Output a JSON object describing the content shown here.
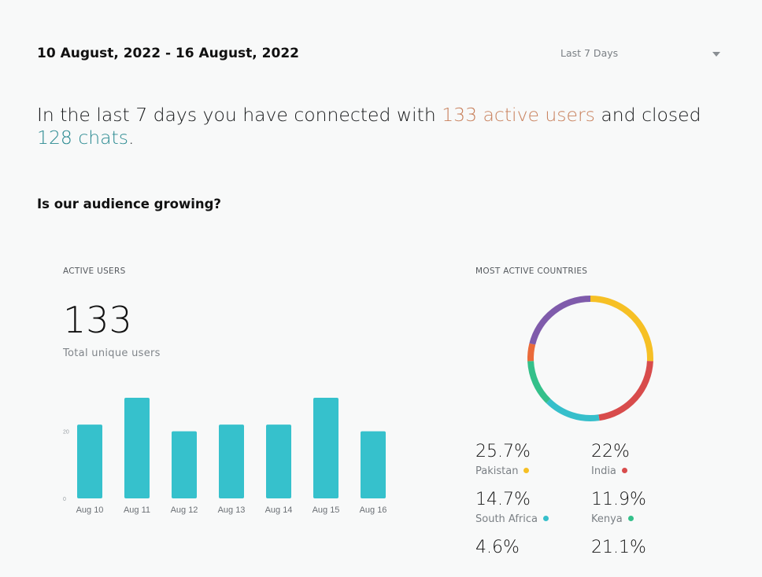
{
  "header": {
    "date_range": "10 August, 2022 - 16 August, 2022",
    "range_select": {
      "value": "Last 7 Days",
      "icon": "chevron-down-icon"
    }
  },
  "summary": {
    "prefix": "In the last 7 days you have connected with ",
    "users_text": "133 active users",
    "middle": " and closed ",
    "chats_text": "128 chats",
    "suffix": "."
  },
  "section_title": "Is our audience growing?",
  "active_users": {
    "title": "ACTIVE USERS",
    "total": "133",
    "subtitle": "Total unique users"
  },
  "countries": {
    "title": "MOST ACTIVE COUNTRIES",
    "items": [
      {
        "percent": "25.7%",
        "name": "Pakistan",
        "color": "#f6c025"
      },
      {
        "percent": "22%",
        "name": "India",
        "color": "#d84c4c"
      },
      {
        "percent": "14.7%",
        "name": "South Africa",
        "color": "#36bfcb"
      },
      {
        "percent": "11.9%",
        "name": "Kenya",
        "color": "#34c08a"
      },
      {
        "percent": "4.6%",
        "name": "",
        "color": "#ea6a3a"
      },
      {
        "percent": "21.1%",
        "name": "",
        "color": "#7f5bab"
      }
    ]
  },
  "colors": {
    "bar": "#36c1cc",
    "orange_text": "#c8805c",
    "teal_text": "#2a8a91"
  },
  "chart_data": [
    {
      "type": "bar",
      "categories": [
        "Aug 10",
        "Aug 11",
        "Aug 12",
        "Aug 13",
        "Aug 14",
        "Aug 15",
        "Aug 16"
      ],
      "values": [
        22,
        30,
        20,
        22,
        22,
        30,
        20
      ],
      "ytick_labels": [
        "0",
        "20"
      ],
      "ylim": [
        0,
        30
      ],
      "grid": false
    },
    {
      "type": "pie",
      "donut": true,
      "labels": [
        "Pakistan",
        "India",
        "South Africa",
        "Kenya",
        "",
        ""
      ],
      "values": [
        25.7,
        22,
        14.7,
        11.9,
        4.6,
        21.1
      ],
      "colors": [
        "#f6c025",
        "#d84c4c",
        "#36bfcb",
        "#34c08a",
        "#ea6a3a",
        "#7f5bab"
      ]
    }
  ]
}
